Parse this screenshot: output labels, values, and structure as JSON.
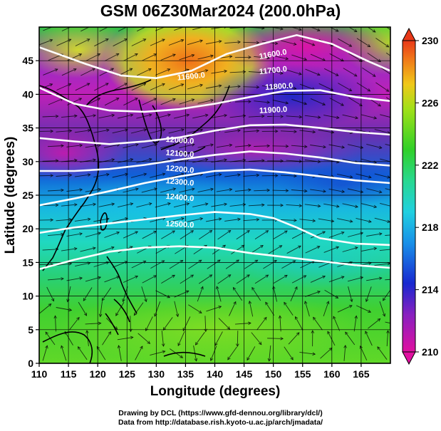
{
  "title": "GSM 06Z30Mar2024 (200.0hPa)",
  "x_axis": {
    "label": "Longitude (degrees)",
    "range": [
      110,
      170
    ],
    "ticks": [
      110,
      115,
      120,
      125,
      130,
      135,
      140,
      145,
      150,
      155,
      160,
      165
    ]
  },
  "y_axis": {
    "label": "Latitude  (degrees)",
    "range": [
      0,
      50
    ],
    "ticks": [
      0,
      5,
      10,
      15,
      20,
      25,
      30,
      35,
      40,
      45
    ]
  },
  "colorbar": {
    "min": 210,
    "max": 230,
    "tick_labels": [
      "230",
      "226",
      "222",
      "218",
      "214",
      "210"
    ],
    "colors": [
      "#e0109a",
      "#1020d0",
      "#18a8e8",
      "#20d8d0",
      "#30d020",
      "#c8e818",
      "#f0a018",
      "#e83a18"
    ]
  },
  "contours": {
    "color": "#ffffff",
    "labels": [
      "11600.0",
      "11600.0",
      "11700.0",
      "11800.0",
      "11900.0",
      "12000.0",
      "12100.0",
      "12200.0",
      "12300.0",
      "12400.0",
      "12500.0"
    ]
  },
  "credits": {
    "line1": "Drawing by DCL (https://www.gfd-dennou.org/library/dcl/)",
    "line2": "Data from http://database.rish.kyoto-u.ac.jp/arch/jmadata/"
  },
  "chart_data": {
    "type": "heatmap",
    "title": "GSM 06Z30Mar2024 (200.0hPa)",
    "xlabel": "Longitude (degrees)",
    "ylabel": "Latitude  (degrees)",
    "xlim": [
      110,
      170
    ],
    "ylim": [
      0,
      50
    ],
    "x_ticks": [
      110,
      115,
      120,
      125,
      130,
      135,
      140,
      145,
      150,
      155,
      160,
      165
    ],
    "y_ticks": [
      0,
      5,
      10,
      15,
      20,
      25,
      30,
      35,
      40,
      45
    ],
    "colorbar_range": [
      210,
      230
    ],
    "colorbar_ticks": [
      230,
      226,
      222,
      218,
      214,
      210
    ],
    "contour_levels": [
      11600,
      11700,
      11800,
      11900,
      12000,
      12100,
      12200,
      12300,
      12400,
      12500
    ],
    "grid": true
  }
}
